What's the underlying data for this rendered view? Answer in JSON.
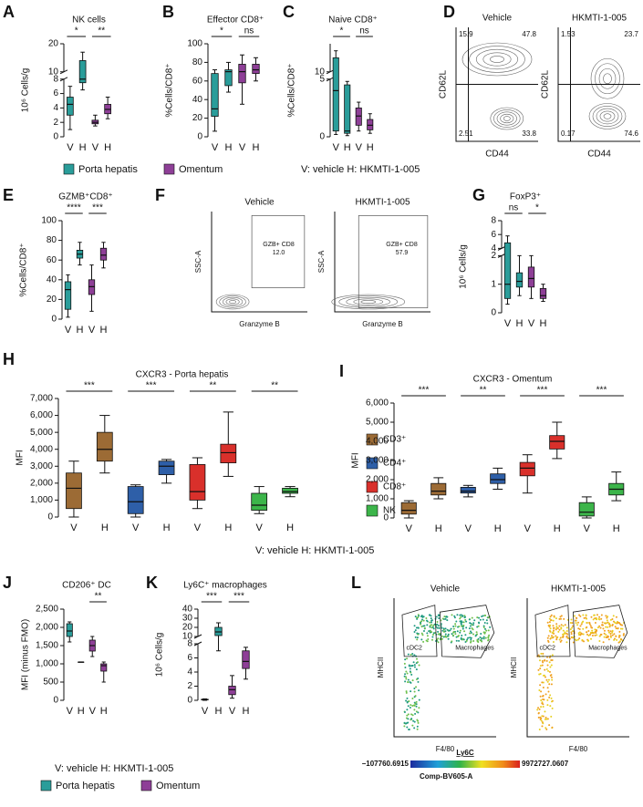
{
  "chart_data": [
    {
      "type": "box",
      "panel": "A",
      "title": "NK cells",
      "ylabel": "10⁶ Cells/g",
      "categories": [
        "V",
        "H",
        "V",
        "H"
      ],
      "y_segments": [
        {
          "ylim": [
            0,
            8
          ],
          "yticks": [
            0,
            2,
            4,
            6,
            8
          ]
        },
        {
          "ylim": [
            10,
            20
          ],
          "yticks": [
            10,
            20
          ]
        }
      ],
      "series": [
        {
          "color": "#2a9d9a",
          "boxes": [
            [
              1,
              3,
              4.5,
              5.5,
              7
            ],
            [
              6.5,
              7.5,
              8,
              14,
              17
            ]
          ]
        },
        {
          "color": "#8e3f97",
          "boxes": [
            [
              1.5,
              1.8,
              2,
              2.3,
              3
            ],
            [
              2.5,
              3.2,
              3.8,
              4.5,
              5.5
            ]
          ]
        }
      ],
      "significance": [
        "*",
        "**"
      ]
    },
    {
      "type": "box",
      "panel": "B",
      "title": "Effector CD8⁺",
      "ylabel": "%Cells/CD8⁺",
      "categories": [
        "V",
        "H",
        "V",
        "H"
      ],
      "ylim": [
        0,
        100
      ],
      "yticks": [
        0,
        20,
        40,
        60,
        80,
        100
      ],
      "series": [
        {
          "color": "#2a9d9a",
          "boxes": [
            [
              6,
              22,
              30,
              68,
              72
            ],
            [
              48,
              55,
              70,
              72,
              80
            ]
          ]
        },
        {
          "color": "#8e3f97",
          "boxes": [
            [
              35,
              58,
              70,
              78,
              88
            ],
            [
              60,
              68,
              72,
              78,
              85
            ]
          ]
        }
      ],
      "significance": [
        "*",
        "ns"
      ]
    },
    {
      "type": "box",
      "panel": "C",
      "title": "Naive CD8⁺",
      "ylabel": "%Cells/CD8⁺",
      "categories": [
        "V",
        "H",
        "V",
        "H"
      ],
      "y_segments": [
        {
          "ylim": [
            0,
            5
          ],
          "yticks": [
            0,
            5
          ]
        },
        {
          "ylim": [
            10,
            12
          ],
          "yticks": [
            10
          ]
        }
      ],
      "series": [
        {
          "color": "#2a9d9a",
          "boxes": [
            [
              0.2,
              0.5,
              4,
              11,
              11.5
            ],
            [
              0.1,
              0.3,
              0.5,
              4.5,
              4.8
            ]
          ]
        },
        {
          "color": "#8e3f97",
          "boxes": [
            [
              0.5,
              1,
              1.8,
              2.5,
              3
            ],
            [
              0.3,
              0.6,
              1,
              1.5,
              2
            ]
          ]
        }
      ],
      "significance": [
        "*",
        "ns"
      ]
    },
    {
      "type": "box",
      "panel": "E",
      "title": "GZMB⁺CD8⁺",
      "ylabel": "%Cells/CD8⁺",
      "categories": [
        "V",
        "H",
        "V",
        "H"
      ],
      "ylim": [
        0,
        100
      ],
      "yticks": [
        0,
        20,
        40,
        60,
        80,
        100
      ],
      "series": [
        {
          "color": "#2a9d9a",
          "boxes": [
            [
              2,
              10,
              30,
              38,
              45
            ],
            [
              55,
              62,
              66,
              70,
              78
            ]
          ]
        },
        {
          "color": "#8e3f97",
          "boxes": [
            [
              8,
              25,
              33,
              40,
              55
            ],
            [
              52,
              60,
              65,
              72,
              78
            ]
          ]
        }
      ],
      "significance": [
        "****",
        "***"
      ]
    },
    {
      "type": "box",
      "panel": "G",
      "title": "FoxP3⁺",
      "ylabel": "10⁶ Cells/g",
      "categories": [
        "V",
        "H",
        "V",
        "H"
      ],
      "y_segments": [
        {
          "ylim": [
            0,
            2
          ],
          "yticks": [
            0,
            1,
            2
          ]
        },
        {
          "ylim": [
            4,
            8
          ],
          "yticks": [
            4,
            6,
            8
          ]
        }
      ],
      "series": [
        {
          "color": "#2a9d9a",
          "boxes": [
            [
              0.3,
              0.5,
              1,
              4.8,
              5.8
            ],
            [
              0.6,
              0.9,
              1.1,
              1.4,
              2
            ]
          ]
        },
        {
          "color": "#8e3f97",
          "boxes": [
            [
              0.5,
              0.9,
              1.2,
              1.6,
              2
            ],
            [
              0.4,
              0.5,
              0.6,
              0.85,
              1
            ]
          ]
        }
      ],
      "significance": [
        "ns",
        "*"
      ]
    },
    {
      "type": "box",
      "panel": "H",
      "title": "CXCR3 - Porta hepatis",
      "ylabel": "MFI",
      "categories": [
        "V",
        "H",
        "V",
        "H",
        "V",
        "H",
        "V",
        "H"
      ],
      "ylim": [
        0,
        7000
      ],
      "yticks": [
        0,
        {
          "value": 1000,
          "label": "1,000"
        },
        {
          "value": 2000,
          "label": "2,000"
        },
        {
          "value": 3000,
          "label": "3,000"
        },
        {
          "value": 4000,
          "label": "4,000"
        },
        {
          "value": 5000,
          "label": "5,000"
        },
        {
          "value": 6000,
          "label": "6,000"
        },
        {
          "value": 7000,
          "label": "7,000"
        }
      ],
      "series": [
        {
          "name": "CD3⁺",
          "color": "#9c6b35",
          "boxes": [
            [
              0,
              500,
              1700,
              2600,
              3300
            ],
            [
              2600,
              3300,
              4000,
              5000,
              6000
            ]
          ]
        },
        {
          "name": "CD4⁺",
          "color": "#2e5fa8",
          "boxes": [
            [
              0,
              200,
              900,
              1800,
              1900
            ],
            [
              2000,
              2500,
              3000,
              3300,
              3400
            ]
          ]
        },
        {
          "name": "CD8⁺",
          "color": "#d9302b",
          "boxes": [
            [
              500,
              1000,
              1500,
              3100,
              3500
            ],
            [
              2400,
              3200,
              3800,
              4300,
              6200
            ]
          ]
        },
        {
          "name": "NK",
          "color": "#3cb54a",
          "boxes": [
            [
              200,
              400,
              700,
              1400,
              1800
            ],
            [
              1200,
              1400,
              1500,
              1700,
              1800
            ]
          ]
        }
      ],
      "significance": [
        "***",
        "***",
        "**",
        "**"
      ]
    },
    {
      "type": "box",
      "panel": "I",
      "title": "CXCR3 - Omentum",
      "ylabel": "MFI",
      "categories": [
        "V",
        "H",
        "V",
        "H",
        "V",
        "H",
        "V",
        "H"
      ],
      "ylim": [
        0,
        6000
      ],
      "yticks": [
        0,
        {
          "value": 1000,
          "label": "1,000"
        },
        {
          "value": 2000,
          "label": "2,000"
        },
        {
          "value": 3000,
          "label": "3,000"
        },
        {
          "value": 4000,
          "label": "4,000"
        },
        {
          "value": 5000,
          "label": "5,000"
        },
        {
          "value": 6000,
          "label": "6,000"
        }
      ],
      "series": [
        {
          "color": "#9c6b35",
          "boxes": [
            [
              0,
              200,
              400,
              800,
              900
            ],
            [
              1000,
              1200,
              1400,
              1800,
              2100
            ]
          ]
        },
        {
          "color": "#2e5fa8",
          "boxes": [
            [
              1100,
              1300,
              1400,
              1600,
              1700
            ],
            [
              1500,
              1800,
              2000,
              2300,
              2600
            ]
          ]
        },
        {
          "color": "#d9302b",
          "boxes": [
            [
              1300,
              2200,
              2600,
              2900,
              3300
            ],
            [
              3100,
              3600,
              4000,
              4300,
              5000
            ]
          ]
        },
        {
          "color": "#3cb54a",
          "boxes": [
            [
              0,
              100,
              300,
              800,
              1100
            ],
            [
              900,
              1200,
              1500,
              1800,
              2400
            ]
          ]
        }
      ],
      "significance": [
        "***",
        "**",
        "***",
        "***"
      ]
    },
    {
      "type": "box",
      "panel": "J",
      "title": "CD206⁺ DC",
      "ylabel": "MFI (minus FMO)",
      "categories": [
        "V",
        "H",
        "V",
        "H"
      ],
      "ylim": [
        0,
        2500
      ],
      "yticks": [
        0,
        500,
        {
          "value": 1000,
          "label": "1,000"
        },
        {
          "value": 1500,
          "label": "1,500"
        },
        {
          "value": 2000,
          "label": "2,000"
        },
        {
          "value": 2500,
          "label": "2,500"
        }
      ],
      "series": [
        {
          "color": "#2a9d9a",
          "boxes": [
            [
              1600,
              1750,
              1900,
              2100,
              2150
            ],
            [
              1050,
              1050,
              1050,
              1050,
              1050
            ]
          ]
        },
        {
          "color": "#8e3f97",
          "boxes": [
            [
              1200,
              1350,
              1500,
              1650,
              1750
            ],
            [
              500,
              800,
              950,
              1000,
              1050
            ]
          ]
        }
      ],
      "significance": [
        null,
        "**"
      ]
    },
    {
      "type": "box",
      "panel": "K",
      "title": "Ly6C⁺ macrophages",
      "ylabel": "10⁶ Cells/g",
      "categories": [
        "V",
        "H",
        "V",
        "H"
      ],
      "y_segments": [
        {
          "ylim": [
            0,
            8
          ],
          "yticks": [
            0,
            2,
            4,
            6,
            8
          ]
        },
        {
          "ylim": [
            10,
            40
          ],
          "yticks": [
            10,
            20,
            30,
            40
          ]
        }
      ],
      "series": [
        {
          "color": "#2a9d9a",
          "boxes": [
            [
              0,
              0.05,
              0.1,
              0.15,
              0.2
            ],
            [
              7,
              11,
              15,
              20,
              25
            ]
          ]
        },
        {
          "color": "#8e3f97",
          "boxes": [
            [
              0.3,
              0.8,
              1.5,
              2,
              3.5
            ],
            [
              3,
              4.5,
              5.5,
              7,
              7.5
            ]
          ]
        }
      ],
      "significance": [
        "***",
        "***"
      ]
    }
  ],
  "legends": [
    {
      "entries": [
        {
          "name": "Porta hepatis",
          "color": "#2a9d9a"
        },
        {
          "name": "Omentum",
          "color": "#8e3f97"
        }
      ],
      "note": "V: vehicle  H: HKMTI-1-005"
    },
    {
      "note": "V: vehicle  H: HKMTI-1-005"
    },
    {
      "entries": [
        {
          "name": "Porta hepatis",
          "color": "#2a9d9a"
        },
        {
          "name": "Omentum",
          "color": "#8e3f97"
        }
      ],
      "note": "V: vehicle  H: HKMTI-1-005"
    }
  ],
  "flow_panels": [
    {
      "panel": "D",
      "xlabel": "CD44",
      "ylabel": "CD62L",
      "plots": [
        {
          "title": "Vehicle",
          "gates": [
            "15.9",
            "47.8",
            "2.51",
            "33.8"
          ]
        },
        {
          "title": "HKMTI-1-005",
          "gates": [
            "1.53",
            "23.7",
            "0.17",
            "74.6"
          ]
        }
      ]
    },
    {
      "panel": "F",
      "xlabel": "Granzyme B",
      "ylabel": "SSC-A",
      "gate_name": "GZB+ CD8",
      "plots": [
        {
          "title": "Vehicle",
          "gates": [
            "12.0"
          ]
        },
        {
          "title": "HKMTI-1-005",
          "gates": [
            "57.9"
          ]
        }
      ]
    },
    {
      "panel": "L",
      "xlabel": "F4/80",
      "ylabel": "MHCII",
      "gate_names": [
        "cDC2",
        "Macrophages"
      ],
      "plots": [
        {
          "title": "Vehicle"
        },
        {
          "title": "HKMTI-1-005"
        }
      ],
      "colorbar": {
        "label": "Ly6C",
        "min": "−107760.6915",
        "max": "9972727.0607",
        "parameter": "Comp-BV605-A"
      }
    }
  ]
}
